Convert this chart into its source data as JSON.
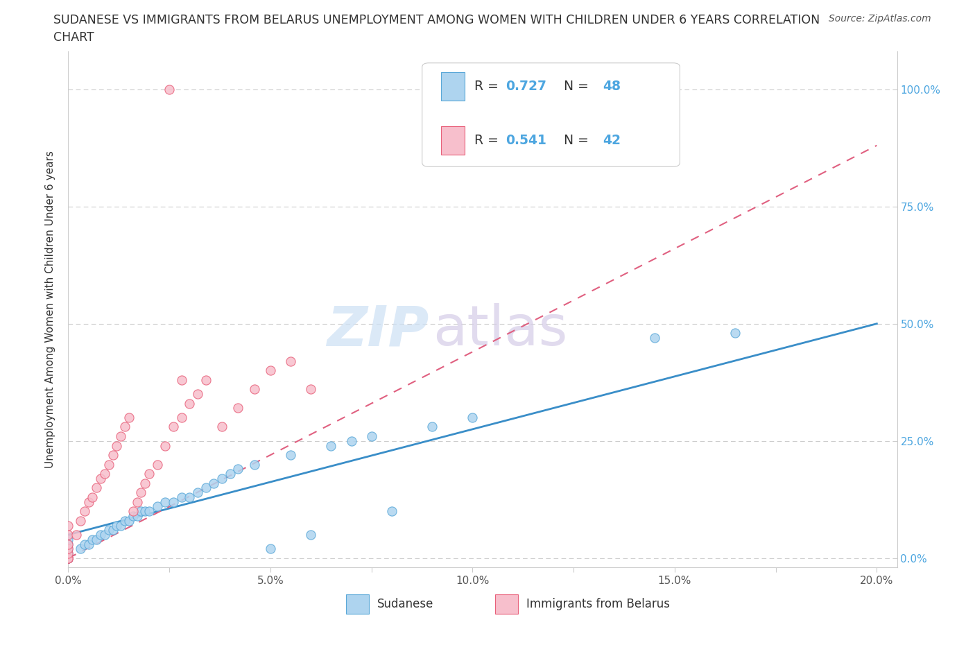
{
  "title_line1": "SUDANESE VS IMMIGRANTS FROM BELARUS UNEMPLOYMENT AMONG WOMEN WITH CHILDREN UNDER 6 YEARS CORRELATION",
  "title_line2": "CHART",
  "source_text": "Source: ZipAtlas.com",
  "ylabel": "Unemployment Among Women with Children Under 6 years",
  "xlim": [
    0.0,
    0.205
  ],
  "ylim": [
    -0.02,
    1.08
  ],
  "ytick_values": [
    0.0,
    0.25,
    0.5,
    0.75,
    1.0
  ],
  "ytick_labels": [
    "0.0%",
    "25.0%",
    "50.0%",
    "75.0%",
    "100.0%"
  ],
  "xtick_values": [
    0.0,
    0.025,
    0.05,
    0.075,
    0.1,
    0.125,
    0.15,
    0.175,
    0.2
  ],
  "xtick_labels": [
    "0.0%",
    "",
    "5.0%",
    "",
    "10.0%",
    "",
    "15.0%",
    "",
    "20.0%"
  ],
  "color_sudanese_fill": "#aed4ef",
  "color_sudanese_edge": "#5aa8d8",
  "color_belarus_fill": "#f7bfcc",
  "color_belarus_edge": "#e8607a",
  "color_line_sudanese": "#3a8ec8",
  "color_line_belarus": "#e06080",
  "legend_r_sudanese": "0.727",
  "legend_n_sudanese": "48",
  "legend_r_belarus": "0.541",
  "legend_n_belarus": "42",
  "legend_color": "#4da6e0",
  "grid_color": "#cccccc",
  "spine_color": "#cccccc",
  "watermark_zip_color": "#cce0f5",
  "watermark_atlas_color": "#d5cce8"
}
